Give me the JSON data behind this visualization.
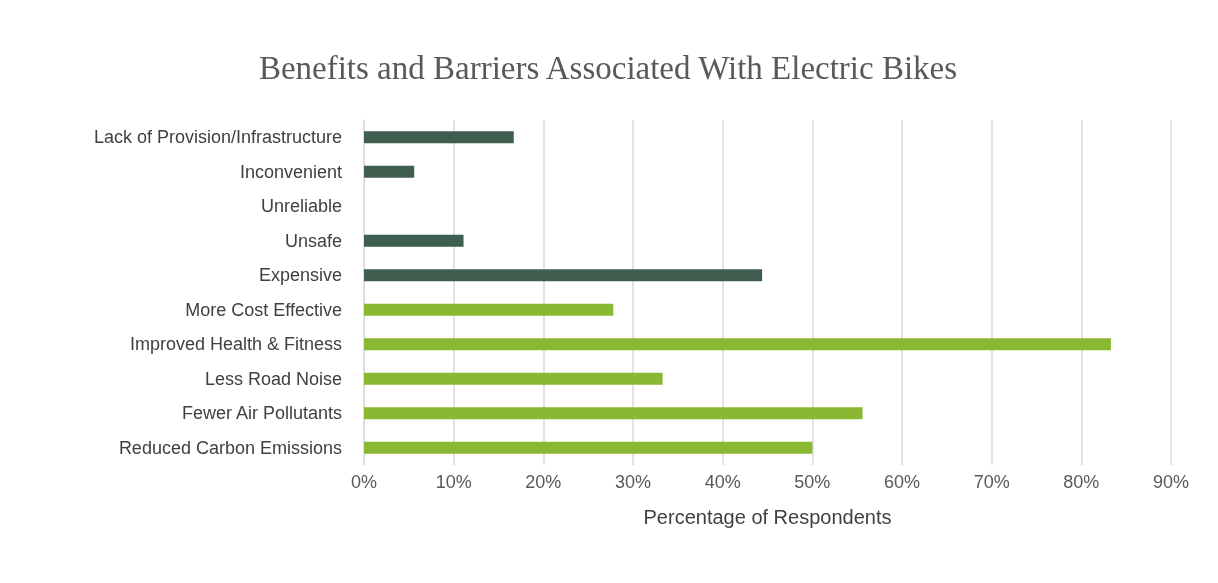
{
  "chart_data": {
    "type": "bar",
    "orientation": "horizontal",
    "title": "Benefits and Barriers Associated With Electric Bikes",
    "xlabel": "Percentage of Respondents",
    "categories": [
      "Lack of Provision/Infrastructure",
      "Inconvenient",
      "Unreliable",
      "Unsafe",
      "Expensive",
      "More Cost Effective",
      "Improved Health & Fitness",
      "Less Road Noise",
      "Fewer Air Pollutants",
      "Reduced Carbon Emissions"
    ],
    "values": [
      16.7,
      5.6,
      0,
      11.1,
      44.4,
      27.8,
      83.3,
      33.3,
      55.6,
      50
    ],
    "colors": [
      "#3f5e50",
      "#3f5e50",
      "#3f5e50",
      "#3f5e50",
      "#3f5e50",
      "#8ab833",
      "#8ab833",
      "#8ab833",
      "#8ab833",
      "#8ab833"
    ],
    "xlim": [
      0,
      90
    ],
    "xticks": [
      {
        "value": 0,
        "label": "0%"
      },
      {
        "value": 10,
        "label": "10%"
      },
      {
        "value": 20,
        "label": "20%"
      },
      {
        "value": 30,
        "label": "30%"
      },
      {
        "value": 40,
        "label": "40%"
      },
      {
        "value": 50,
        "label": "50%"
      },
      {
        "value": 60,
        "label": "60%"
      },
      {
        "value": 70,
        "label": "70%"
      },
      {
        "value": 80,
        "label": "80%"
      },
      {
        "value": 90,
        "label": "90%"
      }
    ],
    "grid": "x"
  }
}
